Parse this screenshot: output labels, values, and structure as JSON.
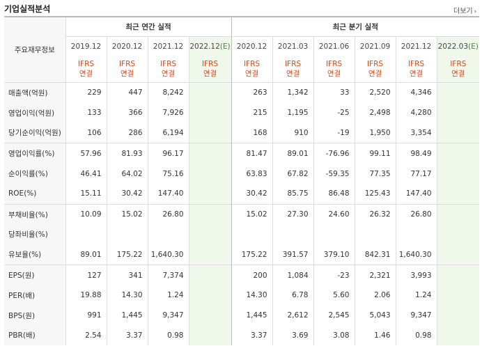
{
  "section_title": "기업실적분석",
  "more_link": "더보기",
  "table": {
    "row_header": "주요재무정보",
    "annual_title": "최근 연간 실적",
    "quarterly_title": "최근 분기 실적",
    "annual_periods": [
      "2019.12",
      "2020.12",
      "2021.12",
      "2022.12"
    ],
    "quarterly_periods": [
      "2020.12",
      "2021.03",
      "2021.06",
      "2021.09",
      "2021.12",
      "2022.03"
    ],
    "estimate_mark": "(E)",
    "ifrs_top": "IFRS",
    "ifrs_bottom": "연결",
    "rows": [
      {
        "label": "매출액(억원)",
        "values": [
          "229",
          "447",
          "8,242",
          "",
          "263",
          "1,342",
          "33",
          "2,520",
          "4,346",
          ""
        ]
      },
      {
        "label": "영업이익(억원)",
        "values": [
          "133",
          "366",
          "7,926",
          "",
          "215",
          "1,195",
          "-25",
          "2,498",
          "4,280",
          ""
        ]
      },
      {
        "label": "당기순이익(억원)",
        "values": [
          "106",
          "286",
          "6,194",
          "",
          "168",
          "910",
          "-19",
          "1,950",
          "3,354",
          ""
        ]
      },
      {
        "label": "영업이익률(%)",
        "values": [
          "57.96",
          "81.93",
          "96.17",
          "",
          "81.47",
          "89.01",
          "-76.96",
          "99.11",
          "98.49",
          ""
        ]
      },
      {
        "label": "순이익률(%)",
        "values": [
          "46.41",
          "64.02",
          "75.16",
          "",
          "63.83",
          "67.82",
          "-59.35",
          "77.35",
          "77.17",
          ""
        ]
      },
      {
        "label": "ROE(%)",
        "values": [
          "15.11",
          "30.42",
          "147.40",
          "",
          "30.42",
          "85.75",
          "86.48",
          "125.43",
          "147.40",
          ""
        ]
      },
      {
        "label": "부채비율(%)",
        "values": [
          "10.09",
          "15.02",
          "26.80",
          "",
          "15.02",
          "27.30",
          "24.60",
          "26.32",
          "26.80",
          ""
        ]
      },
      {
        "label": "당좌비율(%)",
        "values": [
          "",
          "",
          "",
          "",
          "",
          "",
          "",
          "",
          "",
          ""
        ]
      },
      {
        "label": "유보율(%)",
        "values": [
          "89.01",
          "175.22",
          "1,640.30",
          "",
          "175.22",
          "391.57",
          "379.10",
          "842.31",
          "1,640.30",
          ""
        ]
      },
      {
        "label": "EPS(원)",
        "values": [
          "127",
          "341",
          "7,374",
          "",
          "200",
          "1,084",
          "-23",
          "2,321",
          "3,993",
          ""
        ]
      },
      {
        "label": "PER(배)",
        "values": [
          "19.88",
          "14.30",
          "1.24",
          "",
          "14.30",
          "6.78",
          "5.60",
          "2.06",
          "1.24",
          ""
        ]
      },
      {
        "label": "BPS(원)",
        "values": [
          "991",
          "1,445",
          "9,347",
          "",
          "1,445",
          "2,612",
          "2,545",
          "5,043",
          "9,347",
          ""
        ]
      },
      {
        "label": "PBR(배)",
        "values": [
          "2.54",
          "3.37",
          "0.98",
          "",
          "3.37",
          "3.69",
          "3.08",
          "1.46",
          "0.98",
          ""
        ]
      }
    ]
  }
}
